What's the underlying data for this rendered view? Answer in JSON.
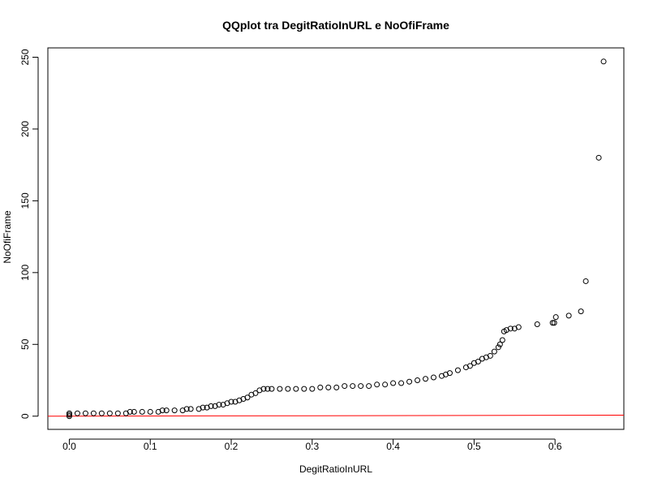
{
  "chart_data": {
    "type": "scatter",
    "title": "QQplot tra DegitRatioInURL e NoOfiFrame",
    "xlabel": "DegitRatioInURL",
    "ylabel": "NoOfiFrame",
    "xlim": [
      -0.0265,
      0.685
    ],
    "ylim": [
      -9.2,
      256.5
    ],
    "xticks": [
      "0.0",
      "0.1",
      "0.2",
      "0.3",
      "0.4",
      "0.5",
      "0.6"
    ],
    "yticks": [
      "0",
      "50",
      "100",
      "150",
      "200",
      "250"
    ],
    "grid": false,
    "reference_line": {
      "slope": 1,
      "intercept": 0,
      "color": "#ff0000"
    },
    "points_color": "#000000",
    "points": [
      [
        0.0,
        0
      ],
      [
        0.0,
        1
      ],
      [
        0.0,
        2
      ],
      [
        0.01,
        2
      ],
      [
        0.02,
        2
      ],
      [
        0.03,
        2
      ],
      [
        0.04,
        2
      ],
      [
        0.05,
        2
      ],
      [
        0.06,
        2
      ],
      [
        0.07,
        2
      ],
      [
        0.075,
        3
      ],
      [
        0.08,
        3
      ],
      [
        0.09,
        3
      ],
      [
        0.1,
        3
      ],
      [
        0.11,
        3
      ],
      [
        0.115,
        4
      ],
      [
        0.12,
        4
      ],
      [
        0.13,
        4
      ],
      [
        0.14,
        4
      ],
      [
        0.145,
        5
      ],
      [
        0.15,
        5
      ],
      [
        0.16,
        5
      ],
      [
        0.165,
        6
      ],
      [
        0.17,
        6
      ],
      [
        0.175,
        7
      ],
      [
        0.18,
        7
      ],
      [
        0.185,
        8
      ],
      [
        0.19,
        8
      ],
      [
        0.195,
        9
      ],
      [
        0.2,
        10
      ],
      [
        0.205,
        10
      ],
      [
        0.21,
        11
      ],
      [
        0.215,
        12
      ],
      [
        0.22,
        13
      ],
      [
        0.225,
        15
      ],
      [
        0.23,
        16
      ],
      [
        0.235,
        18
      ],
      [
        0.24,
        19
      ],
      [
        0.245,
        19
      ],
      [
        0.25,
        19
      ],
      [
        0.26,
        19
      ],
      [
        0.27,
        19
      ],
      [
        0.28,
        19
      ],
      [
        0.29,
        19
      ],
      [
        0.3,
        19
      ],
      [
        0.31,
        20
      ],
      [
        0.32,
        20
      ],
      [
        0.33,
        20
      ],
      [
        0.34,
        21
      ],
      [
        0.35,
        21
      ],
      [
        0.36,
        21
      ],
      [
        0.37,
        21
      ],
      [
        0.38,
        22
      ],
      [
        0.39,
        22
      ],
      [
        0.4,
        23
      ],
      [
        0.41,
        23
      ],
      [
        0.42,
        24
      ],
      [
        0.43,
        25
      ],
      [
        0.44,
        26
      ],
      [
        0.45,
        27
      ],
      [
        0.46,
        28
      ],
      [
        0.465,
        29
      ],
      [
        0.47,
        30
      ],
      [
        0.48,
        32
      ],
      [
        0.49,
        34
      ],
      [
        0.495,
        35
      ],
      [
        0.5,
        37
      ],
      [
        0.505,
        38
      ],
      [
        0.51,
        40
      ],
      [
        0.515,
        41
      ],
      [
        0.52,
        42
      ],
      [
        0.525,
        45
      ],
      [
        0.53,
        48
      ],
      [
        0.532,
        50
      ],
      [
        0.535,
        53
      ],
      [
        0.537,
        59
      ],
      [
        0.54,
        60
      ],
      [
        0.545,
        61
      ],
      [
        0.55,
        61
      ],
      [
        0.555,
        62
      ],
      [
        0.578,
        64
      ],
      [
        0.597,
        65
      ],
      [
        0.599,
        65
      ],
      [
        0.601,
        69
      ],
      [
        0.617,
        70
      ],
      [
        0.632,
        73
      ],
      [
        0.638,
        94
      ],
      [
        0.654,
        180
      ],
      [
        0.66,
        247
      ]
    ]
  }
}
